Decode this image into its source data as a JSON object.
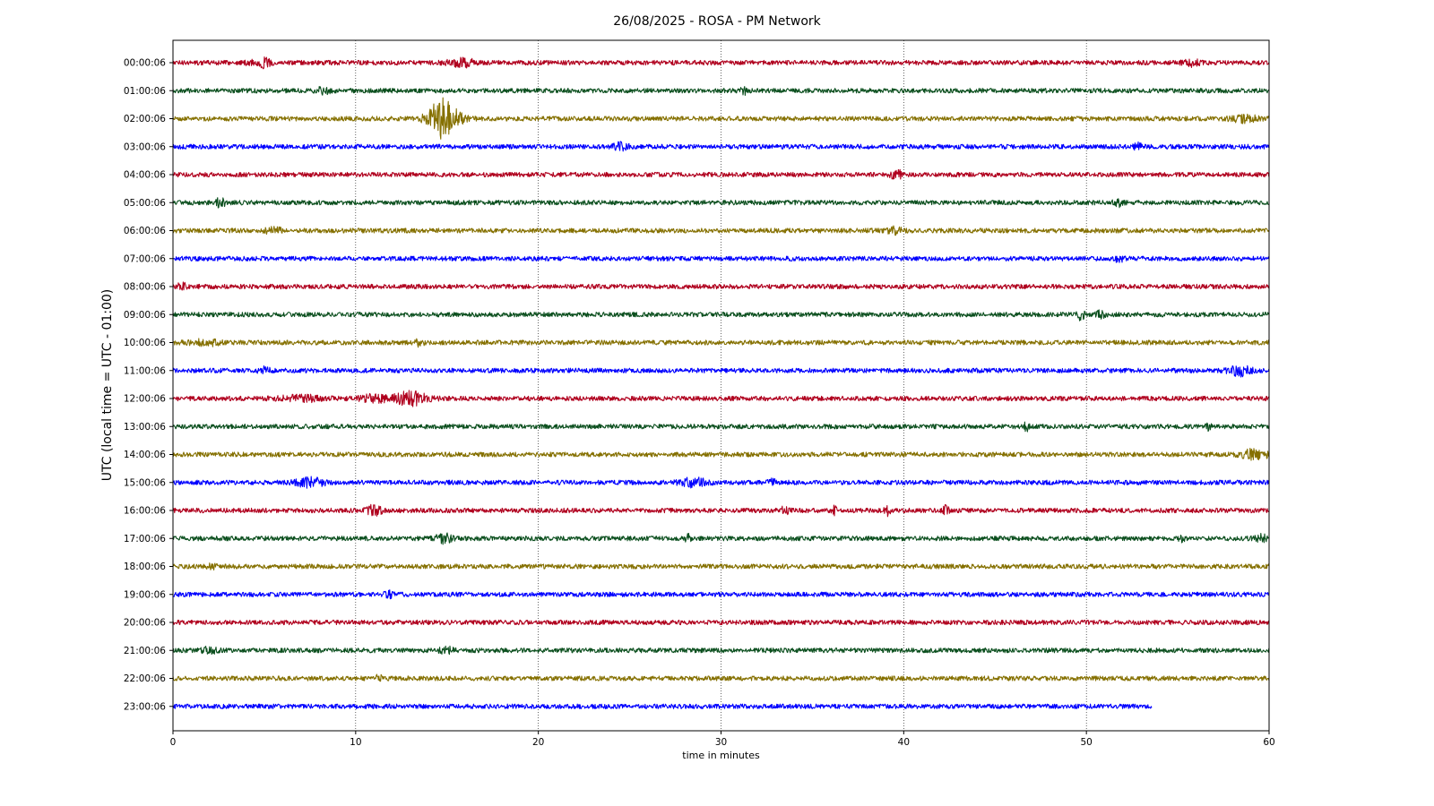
{
  "chart_data": {
    "type": "line",
    "title": "26/08/2025 - ROSA - PM Network",
    "xlabel": "time in minutes",
    "ylabel": "UTC (local time = UTC - 01:00)",
    "xlim": [
      0,
      60
    ],
    "x_ticks": [
      0,
      10,
      20,
      30,
      40,
      50,
      60
    ],
    "grid": "vertical dotted",
    "series": [
      {
        "label": "00:00:06",
        "color": "#b0001e",
        "end_minute": 60,
        "events": [
          {
            "t": 4.8,
            "amp": 0.5,
            "dur": 1.2
          },
          {
            "t": 15.8,
            "amp": 0.45,
            "dur": 1.4
          },
          {
            "t": 55.8,
            "amp": 0.35,
            "dur": 1.0
          }
        ]
      },
      {
        "label": "01:00:06",
        "color": "#0b4f1e",
        "end_minute": 60,
        "events": [
          {
            "t": 8.2,
            "amp": 0.3,
            "dur": 0.8
          },
          {
            "t": 31.3,
            "amp": 0.3,
            "dur": 0.5
          }
        ]
      },
      {
        "label": "02:00:06",
        "color": "#857000",
        "end_minute": 60,
        "events": [
          {
            "t": 14.8,
            "amp": 2.4,
            "dur": 1.6
          },
          {
            "t": 58.7,
            "amp": 0.35,
            "dur": 1.5
          }
        ]
      },
      {
        "label": "03:00:06",
        "color": "#0000ff",
        "end_minute": 60,
        "events": [
          {
            "t": 24.5,
            "amp": 0.4,
            "dur": 0.8
          },
          {
            "t": 52.8,
            "amp": 0.35,
            "dur": 0.5
          }
        ]
      },
      {
        "label": "04:00:06",
        "color": "#b0001e",
        "end_minute": 60,
        "events": [
          {
            "t": 39.6,
            "amp": 0.55,
            "dur": 0.6
          }
        ]
      },
      {
        "label": "05:00:06",
        "color": "#0b4f1e",
        "end_minute": 60,
        "events": [
          {
            "t": 2.6,
            "amp": 0.5,
            "dur": 0.5
          },
          {
            "t": 51.8,
            "amp": 0.35,
            "dur": 0.6
          }
        ]
      },
      {
        "label": "06:00:06",
        "color": "#857000",
        "end_minute": 60,
        "events": [
          {
            "t": 5.5,
            "amp": 0.35,
            "dur": 0.9
          },
          {
            "t": 39.5,
            "amp": 0.35,
            "dur": 0.8
          }
        ]
      },
      {
        "label": "07:00:06",
        "color": "#0000ff",
        "end_minute": 60,
        "events": [
          {
            "t": 51.8,
            "amp": 0.3,
            "dur": 0.5
          }
        ]
      },
      {
        "label": "08:00:06",
        "color": "#b0001e",
        "end_minute": 60,
        "events": [
          {
            "t": 0.5,
            "amp": 0.3,
            "dur": 0.6
          }
        ]
      },
      {
        "label": "09:00:06",
        "color": "#0b4f1e",
        "end_minute": 60,
        "events": [
          {
            "t": 49.7,
            "amp": 0.55,
            "dur": 0.4
          },
          {
            "t": 50.8,
            "amp": 0.45,
            "dur": 0.5
          }
        ]
      },
      {
        "label": "10:00:06",
        "color": "#857000",
        "end_minute": 60,
        "events": [
          {
            "t": 1.8,
            "amp": 0.3,
            "dur": 1.6
          },
          {
            "t": 13.5,
            "amp": 0.35,
            "dur": 0.5
          }
        ]
      },
      {
        "label": "11:00:06",
        "color": "#0000ff",
        "end_minute": 60,
        "events": [
          {
            "t": 5.0,
            "amp": 0.35,
            "dur": 0.6
          },
          {
            "t": 58.4,
            "amp": 0.55,
            "dur": 1.2
          }
        ]
      },
      {
        "label": "12:00:06",
        "color": "#b0001e",
        "end_minute": 60,
        "events": [
          {
            "t": 7.0,
            "amp": 0.3,
            "dur": 2.5
          },
          {
            "t": 11.0,
            "amp": 0.4,
            "dur": 1.5
          },
          {
            "t": 13.0,
            "amp": 0.75,
            "dur": 1.8
          }
        ]
      },
      {
        "label": "13:00:06",
        "color": "#0b4f1e",
        "end_minute": 60,
        "events": [
          {
            "t": 46.7,
            "amp": 0.45,
            "dur": 0.3
          },
          {
            "t": 56.7,
            "amp": 0.4,
            "dur": 0.3
          }
        ]
      },
      {
        "label": "14:00:06",
        "color": "#857000",
        "end_minute": 60,
        "events": [
          {
            "t": 59.2,
            "amp": 0.55,
            "dur": 1.4
          }
        ]
      },
      {
        "label": "15:00:06",
        "color": "#0000ff",
        "end_minute": 60,
        "events": [
          {
            "t": 7.5,
            "amp": 0.5,
            "dur": 1.5
          },
          {
            "t": 28.5,
            "amp": 0.45,
            "dur": 1.5
          },
          {
            "t": 32.8,
            "amp": 0.35,
            "dur": 0.4
          }
        ]
      },
      {
        "label": "16:00:06",
        "color": "#b0001e",
        "end_minute": 60,
        "events": [
          {
            "t": 11.0,
            "amp": 0.55,
            "dur": 0.8
          },
          {
            "t": 33.5,
            "amp": 0.45,
            "dur": 0.4
          },
          {
            "t": 36.2,
            "amp": 0.55,
            "dur": 0.3
          },
          {
            "t": 39.1,
            "amp": 0.5,
            "dur": 0.3
          },
          {
            "t": 42.3,
            "amp": 0.5,
            "dur": 0.3
          }
        ]
      },
      {
        "label": "17:00:06",
        "color": "#0b4f1e",
        "end_minute": 60,
        "events": [
          {
            "t": 14.8,
            "amp": 0.55,
            "dur": 0.8
          },
          {
            "t": 28.2,
            "amp": 0.4,
            "dur": 0.3
          },
          {
            "t": 55.2,
            "amp": 0.4,
            "dur": 0.3
          },
          {
            "t": 59.6,
            "amp": 0.35,
            "dur": 0.8
          }
        ]
      },
      {
        "label": "18:00:06",
        "color": "#857000",
        "end_minute": 60,
        "events": [
          {
            "t": 2.2,
            "amp": 0.35,
            "dur": 0.5
          }
        ]
      },
      {
        "label": "19:00:06",
        "color": "#0000ff",
        "end_minute": 60,
        "events": [
          {
            "t": 11.8,
            "amp": 0.35,
            "dur": 0.5
          }
        ]
      },
      {
        "label": "20:00:06",
        "color": "#b0001e",
        "end_minute": 60,
        "events": []
      },
      {
        "label": "21:00:06",
        "color": "#0b4f1e",
        "end_minute": 60,
        "events": [
          {
            "t": 2.0,
            "amp": 0.3,
            "dur": 0.8
          },
          {
            "t": 15.0,
            "amp": 0.3,
            "dur": 0.8
          }
        ]
      },
      {
        "label": "22:00:06",
        "color": "#857000",
        "end_minute": 60,
        "events": [
          {
            "t": 11.2,
            "amp": 0.3,
            "dur": 0.6
          }
        ]
      },
      {
        "label": "23:00:06",
        "color": "#0000ff",
        "end_minute": 53.6,
        "events": []
      }
    ]
  }
}
